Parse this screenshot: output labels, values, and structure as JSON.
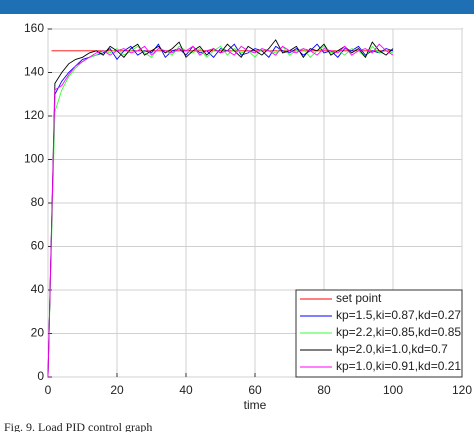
{
  "chart_data": {
    "type": "line",
    "caption": "Fig. 9. Load PID control graph",
    "xlabel": "time",
    "x": [
      0,
      2,
      4,
      6,
      8,
      10,
      12,
      14,
      16,
      18,
      20,
      22,
      24,
      26,
      28,
      30,
      32,
      34,
      36,
      38,
      40,
      42,
      44,
      46,
      48,
      50,
      52,
      54,
      56,
      58,
      60,
      62,
      64,
      66,
      68,
      70,
      72,
      74,
      76,
      78,
      80,
      82,
      84,
      86,
      88,
      90,
      92,
      94,
      96,
      98,
      100
    ],
    "series": [
      {
        "name": "set point",
        "color": "#ff0000",
        "x": [
          1,
          100
        ],
        "values": [
          150,
          150
        ]
      },
      {
        "name": "kp=1.5,ki=0.87,kd=0.27",
        "color": "#0000ff",
        "values": [
          0,
          130,
          136,
          140,
          143,
          146,
          147,
          148,
          149,
          151,
          146,
          150,
          152,
          148,
          150,
          149,
          153,
          147,
          150,
          151,
          148,
          152,
          149,
          150,
          147,
          151,
          150,
          153,
          148,
          149,
          151,
          150,
          147,
          152,
          150,
          149,
          151,
          148,
          150,
          153,
          149,
          150,
          147,
          151,
          150,
          152,
          148,
          150,
          149,
          151,
          150
        ]
      },
      {
        "name": "kp=2.2,ki=0.85,kd=0.85",
        "color": "#33ff33",
        "values": [
          0,
          122,
          132,
          138,
          142,
          145,
          147,
          148,
          150,
          149,
          151,
          148,
          150,
          152,
          149,
          147,
          151,
          150,
          148,
          152,
          150,
          149,
          151,
          147,
          150,
          152,
          148,
          151,
          149,
          150,
          147,
          151,
          150,
          149,
          152,
          148,
          150,
          151,
          147,
          150,
          152,
          149,
          150,
          148,
          151,
          150,
          147,
          152,
          149,
          150,
          149
        ]
      },
      {
        "name": "kp=2.0,ki=1.0,kd=0.7",
        "color": "#000000",
        "values": [
          0,
          135,
          140,
          144,
          146,
          147,
          149,
          150,
          148,
          152,
          150,
          147,
          151,
          153,
          148,
          150,
          152,
          149,
          151,
          154,
          147,
          150,
          152,
          148,
          151,
          149,
          153,
          150,
          147,
          152,
          150,
          148,
          151,
          155,
          149,
          150,
          152,
          147,
          151,
          150,
          153,
          148,
          150,
          152,
          149,
          151,
          147,
          154,
          150,
          148,
          151
        ]
      },
      {
        "name": "kp=1.0,ki=0.91,kd=0.21",
        "color": "#ff00ff",
        "values": [
          0,
          132,
          134,
          139,
          143,
          145,
          147,
          149,
          150,
          148,
          150,
          151,
          149,
          150,
          152,
          148,
          151,
          150,
          149,
          151,
          150,
          152,
          148,
          150,
          151,
          149,
          150,
          148,
          152,
          150,
          149,
          151,
          150,
          148,
          152,
          150,
          149,
          151,
          150,
          148,
          151,
          150,
          149,
          152,
          148,
          150,
          151,
          149,
          153,
          150,
          148
        ]
      }
    ],
    "xlim": [
      0,
      120
    ],
    "xticks": [
      0,
      20,
      40,
      60,
      80,
      100,
      120
    ],
    "ylim": [
      0,
      160
    ],
    "yticks": [
      0,
      20,
      40,
      60,
      80,
      100,
      120,
      140,
      160
    ],
    "grid": true,
    "legend": "lower right"
  }
}
